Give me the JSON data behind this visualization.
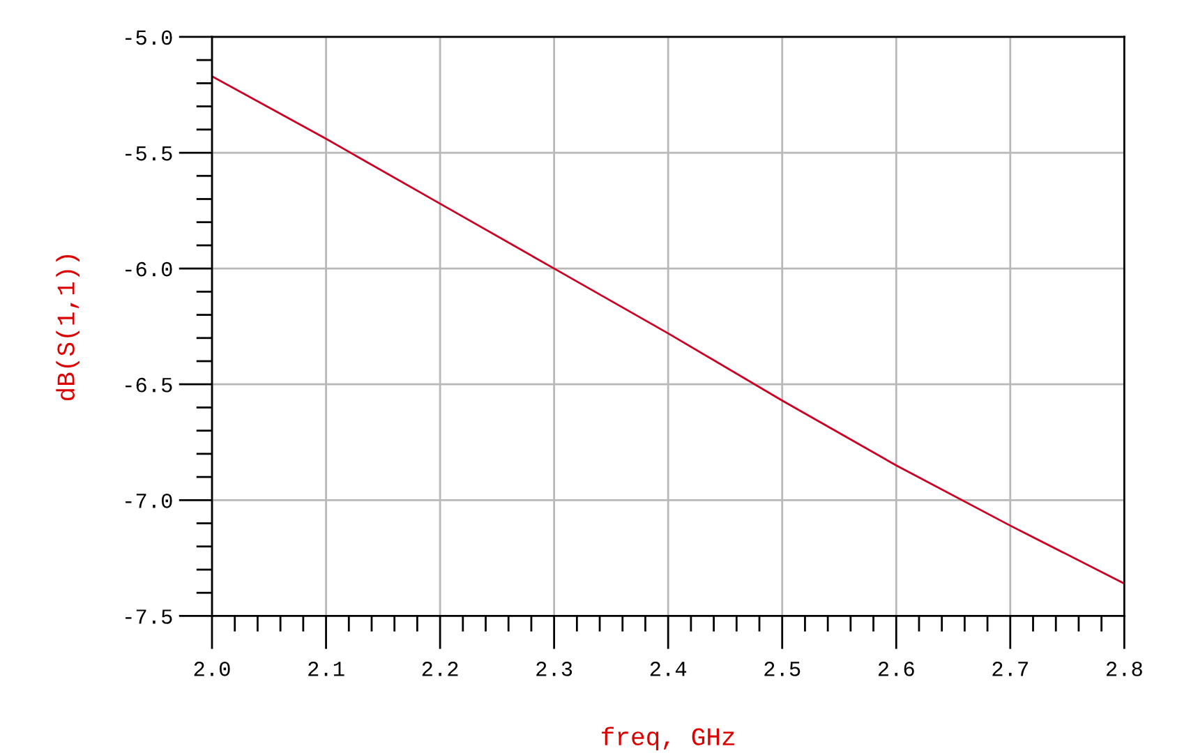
{
  "chart_data": {
    "type": "line",
    "xlabel": "freq, GHz",
    "ylabel": "dB(S(1,1))",
    "x": [
      2.0,
      2.1,
      2.2,
      2.3,
      2.4,
      2.5,
      2.6,
      2.7,
      2.8
    ],
    "series": [
      {
        "color": "#cc0022",
        "values": [
          -5.17,
          -5.44,
          -5.72,
          -6.0,
          -6.28,
          -6.57,
          -6.85,
          -7.11,
          -7.36
        ]
      }
    ],
    "xlim": [
      2.0,
      2.8
    ],
    "xticks": [
      {
        "value": 2,
        "label": "2.0"
      },
      2.1,
      2.2,
      2.3,
      2.4,
      2.5,
      2.6,
      2.7,
      2.8
    ],
    "ylim": [
      -7.5,
      -5.0
    ],
    "yticks": [
      -7.5,
      {
        "value": -7,
        "label": "-7.0"
      },
      -6.5,
      {
        "value": -6,
        "label": "-6.0"
      },
      -5.5,
      {
        "value": -5,
        "label": "-5.0"
      }
    ],
    "grid": true,
    "line_style": "solid",
    "marker": "none"
  }
}
